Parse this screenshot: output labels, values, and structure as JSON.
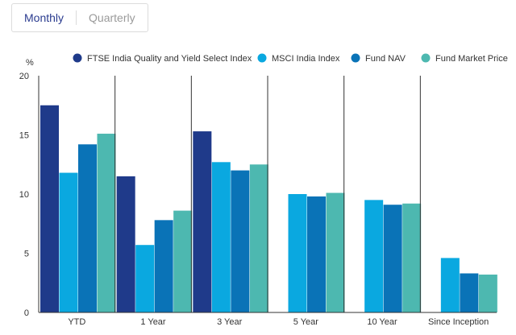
{
  "toggle": {
    "monthly": "Monthly",
    "quarterly": "Quarterly"
  },
  "chart_data": {
    "type": "bar",
    "unit": "%",
    "categories": [
      "YTD",
      "1 Year",
      "3 Year",
      "5 Year",
      "10 Year",
      "Since Inception"
    ],
    "series": [
      {
        "name": "FTSE India Quality and Yield Select Index",
        "color": "#1f3a8a",
        "values": [
          17.5,
          11.5,
          15.3,
          null,
          null,
          null
        ]
      },
      {
        "name": "MSCI India Index",
        "color": "#0aa8e0",
        "values": [
          11.8,
          5.7,
          12.7,
          10.0,
          9.5,
          4.6
        ]
      },
      {
        "name": "Fund NAV",
        "color": "#0a73b7",
        "values": [
          14.2,
          7.8,
          12.0,
          9.8,
          9.1,
          3.3
        ]
      },
      {
        "name": "Fund Market Price",
        "color": "#4db8b0",
        "values": [
          15.1,
          8.6,
          12.5,
          10.1,
          9.2,
          3.2
        ]
      }
    ],
    "yticks": [
      0,
      5,
      10,
      15,
      20
    ],
    "ylim": [
      0,
      20
    ],
    "legend_position": "top",
    "grid": false
  }
}
